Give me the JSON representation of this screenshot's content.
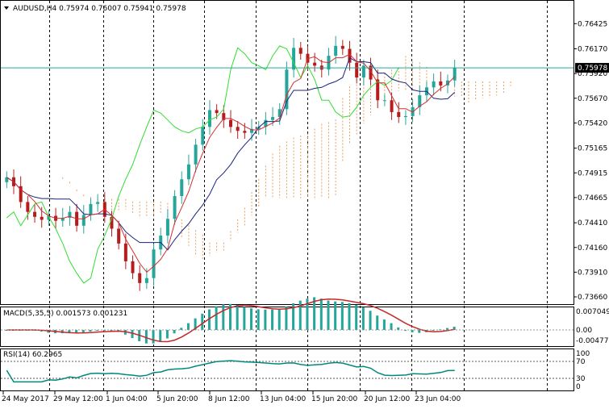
{
  "header": {
    "symbol_line": "AUDUSD,H4  0.75974 0.76007 0.75941 0.75978"
  },
  "price_axis": {
    "labels": [
      "0.76425",
      "0.76170",
      "0.75920",
      "0.75670",
      "0.75420",
      "0.75165",
      "0.74915",
      "0.74665",
      "0.74410",
      "0.74160",
      "0.73910",
      "0.73660"
    ],
    "current_price_label": "0.75978"
  },
  "macd_panel": {
    "title": "MACD(5,35,5) 0.001573 0.001231",
    "axis_labels": [
      "0.007049",
      "0.00",
      "-0.004779"
    ]
  },
  "rsi_panel": {
    "title": "RSI(14) 60.2965",
    "axis_labels": [
      "100",
      "70",
      "30",
      "0"
    ]
  },
  "time_axis": {
    "labels": [
      "24 May 2017",
      "29 May 12:00",
      "1 Jun 04:00",
      "5 Jun 20:00",
      "8 Jun 12:00",
      "13 Jun 04:00",
      "15 Jun 20:00",
      "20 Jun 12:00",
      "23 Jun 04:00"
    ]
  },
  "colors": {
    "bull": "#26a69a",
    "bear": "#b71c1c",
    "tenkan": "#d32f2f",
    "kijun": "#1a237e",
    "chikou": "#33dd33",
    "cloud": "#e8a060",
    "macd_hist": "#26a69a",
    "macd_signal": "#c62828",
    "rsi": "#00897b",
    "price_line": "#26a69a"
  },
  "chart_data": {
    "type": "candlestick",
    "symbol": "AUDUSD",
    "timeframe": "H4",
    "ohlc_current": {
      "open": 0.75974,
      "high": 0.76007,
      "low": 0.75941,
      "close": 0.75978
    },
    "ylim": [
      0.7366,
      0.7655
    ],
    "close_series": [
      0.7487,
      0.7478,
      0.7462,
      0.7452,
      0.7447,
      0.7444,
      0.7448,
      0.7443,
      0.7446,
      0.7452,
      0.7438,
      0.7449,
      0.746,
      0.7462,
      0.7447,
      0.7435,
      0.742,
      0.7402,
      0.739,
      0.738,
      0.7385,
      0.7414,
      0.7428,
      0.7445,
      0.7468,
      0.7485,
      0.75,
      0.752,
      0.7538,
      0.7555,
      0.7552,
      0.7545,
      0.7538,
      0.7534,
      0.7532,
      0.7536,
      0.7538,
      0.7545,
      0.7548,
      0.7556,
      0.7596,
      0.7618,
      0.7612,
      0.7603,
      0.76,
      0.7596,
      0.761,
      0.762,
      0.7617,
      0.7603,
      0.7588,
      0.76,
      0.7586,
      0.7565,
      0.7565,
      0.7553,
      0.7548,
      0.7549,
      0.7558,
      0.757,
      0.7578,
      0.7584,
      0.758,
      0.7585,
      0.7598
    ],
    "macd": {
      "main": 0.001573,
      "signal": 0.001231,
      "ylim": [
        -0.004779,
        0.007049
      ]
    },
    "rsi": {
      "value": 60.2965,
      "levels": [
        70,
        30
      ],
      "ylim": [
        0,
        100
      ]
    }
  }
}
